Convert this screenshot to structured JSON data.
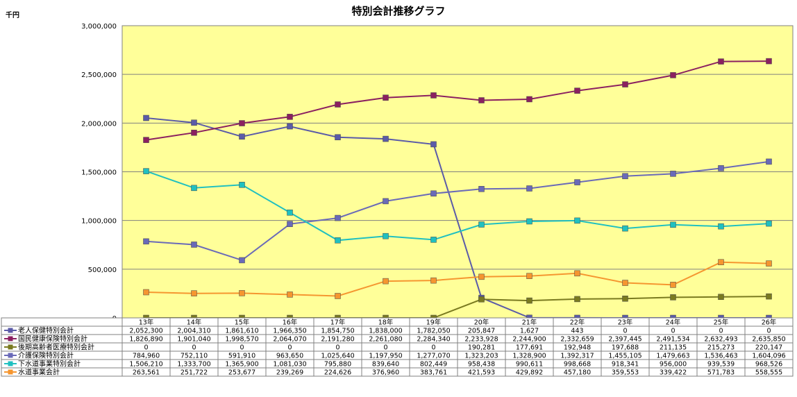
{
  "chart_data": {
    "type": "line",
    "title": "特別会計推移グラフ",
    "unit_label": "千円",
    "ylim": [
      0,
      3000000
    ],
    "y_ticks": [
      "0",
      "500,000",
      "1,000,000",
      "1,500,000",
      "2,000,000",
      "2,500,000",
      "3,000,000"
    ],
    "y_tick_values": [
      0,
      500000,
      1000000,
      1500000,
      2000000,
      2500000,
      3000000
    ],
    "grid": true,
    "legend": "table-left",
    "plot_background": "#ffff99",
    "categories": [
      "13年",
      "14年",
      "15年",
      "16年",
      "17年",
      "18年",
      "19年",
      "20年",
      "21年",
      "22年",
      "23年",
      "24年",
      "25年",
      "26年"
    ],
    "series": [
      {
        "name": "老人保健特別会計",
        "color": "#5b5ba8",
        "values": [
          2052300,
          2004310,
          1861610,
          1966350,
          1854750,
          1838000,
          1782050,
          205847,
          1627,
          443,
          0,
          0,
          0,
          0
        ],
        "labels": [
          "2,052,300",
          "2,004,310",
          "1,861,610",
          "1,966,350",
          "1,854,750",
          "1,838,000",
          "1,782,050",
          "205,847",
          "1,627",
          "443",
          "0",
          "0",
          "0",
          "0"
        ]
      },
      {
        "name": "国民健康保険特別会計",
        "color": "#8b2060",
        "values": [
          1826890,
          1901040,
          1998570,
          2064070,
          2191280,
          2261080,
          2284340,
          2233928,
          2244900,
          2332659,
          2397445,
          2491534,
          2632493,
          2635850
        ],
        "labels": [
          "1,826,890",
          "1,901,040",
          "1,998,570",
          "2,064,070",
          "2,191,280",
          "2,261,080",
          "2,284,340",
          "2,233,928",
          "2,244,900",
          "2,332,659",
          "2,397,445",
          "2,491,534",
          "2,632,493",
          "2,635,850"
        ]
      },
      {
        "name": "後期高齢者医療特別会計",
        "color": "#7a7a20",
        "values": [
          0,
          0,
          0,
          0,
          0,
          0,
          0,
          190281,
          177691,
          192948,
          197688,
          211135,
          215273,
          220147
        ],
        "labels": [
          "0",
          "0",
          "0",
          "0",
          "0",
          "0",
          "0",
          "190,281",
          "177,691",
          "192,948",
          "197,688",
          "211,135",
          "215,273",
          "220,147"
        ]
      },
      {
        "name": "介護保険特別会計",
        "color": "#6a6ab8",
        "values": [
          784960,
          752110,
          591910,
          963650,
          1025640,
          1197950,
          1277070,
          1323203,
          1328900,
          1392317,
          1455105,
          1479663,
          1536463,
          1604096
        ],
        "labels": [
          "784,960",
          "752,110",
          "591,910",
          "963,650",
          "1,025,640",
          "1,197,950",
          "1,277,070",
          "1,323,203",
          "1,328,900",
          "1,392,317",
          "1,455,105",
          "1,479,663",
          "1,536,463",
          "1,604,096"
        ]
      },
      {
        "name": "下水道事業特別会計",
        "color": "#20c0c0",
        "values": [
          1506210,
          1333700,
          1365900,
          1081030,
          795880,
          839640,
          802449,
          958438,
          990611,
          998668,
          918341,
          956000,
          939539,
          968526
        ],
        "labels": [
          "1,506,210",
          "1,333,700",
          "1,365,900",
          "1,081,030",
          "795,880",
          "839,640",
          "802,449",
          "958,438",
          "990,611",
          "998,668",
          "918,341",
          "956,000",
          "939,539",
          "968,526"
        ]
      },
      {
        "name": "水道事業会計",
        "color": "#f59630",
        "values": [
          263561,
          251722,
          253677,
          239269,
          224626,
          376960,
          383761,
          421593,
          429892,
          457180,
          359553,
          339422,
          571783,
          558555
        ],
        "labels": [
          "263,561",
          "251,722",
          "253,677",
          "239,269",
          "224,626",
          "376,960",
          "383,761",
          "421,593",
          "429,892",
          "457,180",
          "359,553",
          "339,422",
          "571,783",
          "558,555"
        ]
      }
    ]
  }
}
